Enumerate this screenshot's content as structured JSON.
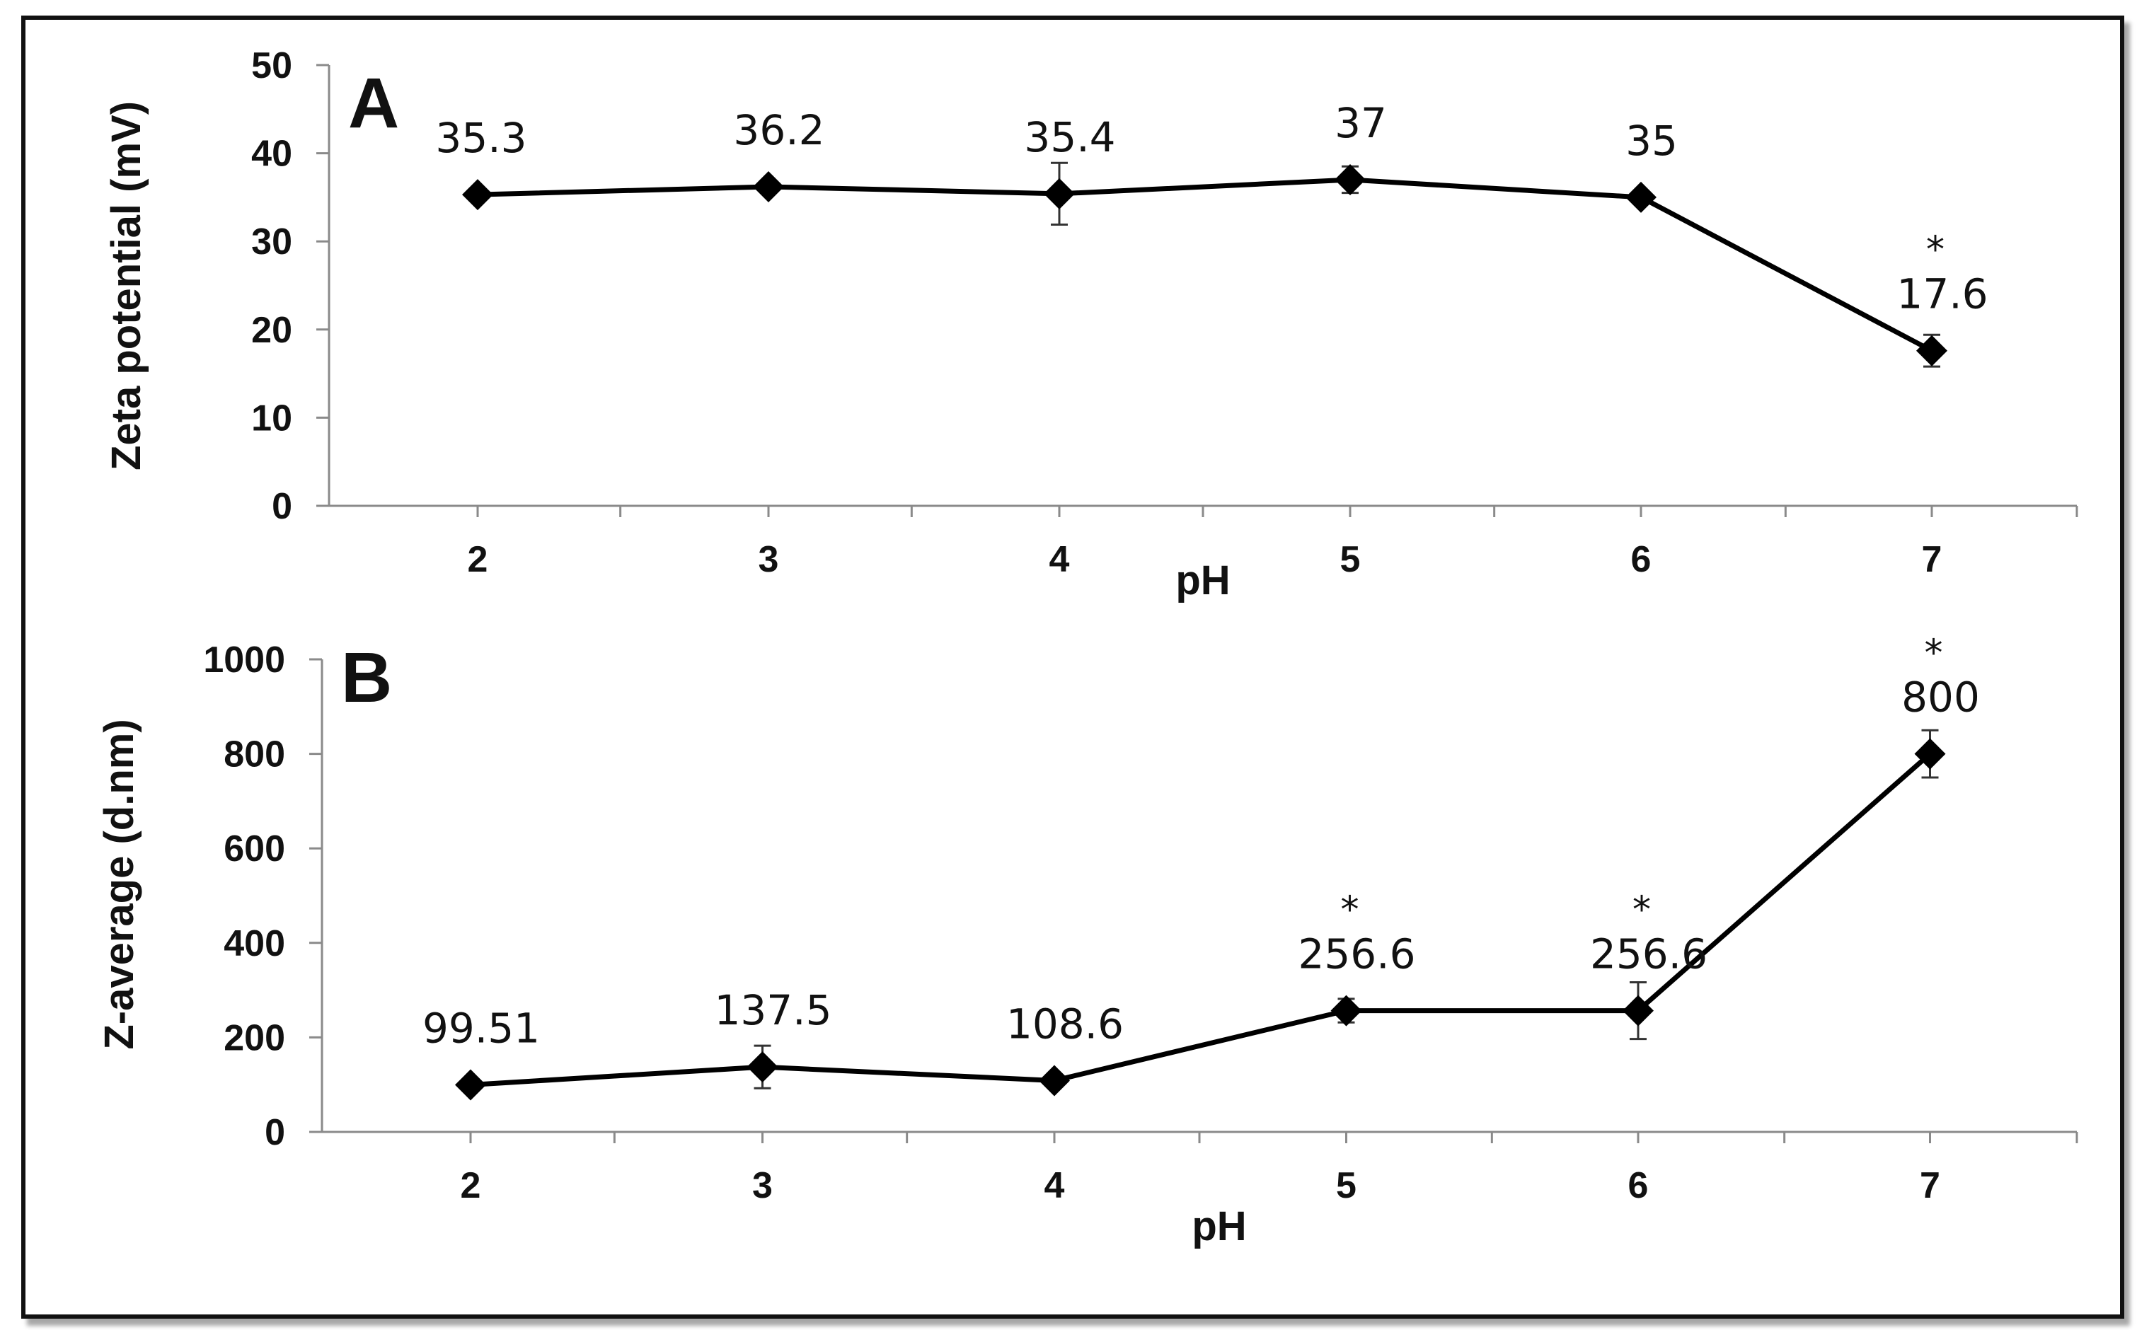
{
  "chart_data": [
    {
      "type": "line",
      "panel_label": "A",
      "xlabel": "pH",
      "ylabel": "Zeta potential  (mV)",
      "categories": [
        "2",
        "3",
        "4",
        "5",
        "6",
        "7"
      ],
      "ylim": [
        0,
        50
      ],
      "yticks": [
        "0",
        "10",
        "20",
        "30",
        "40",
        "50"
      ],
      "values": [
        35.3,
        36.2,
        35.4,
        37,
        35,
        17.6
      ],
      "errors": [
        0.6,
        0.6,
        3.5,
        1.5,
        0.5,
        1.8
      ],
      "data_labels": [
        "35.3",
        "36.2",
        "35.4",
        "37",
        "35",
        "17.6"
      ],
      "significance": [
        "",
        "",
        "",
        "",
        "",
        "*"
      ],
      "grid": false,
      "line_color": "#000000",
      "marker": "diamond"
    },
    {
      "type": "line",
      "panel_label": "B",
      "xlabel": "pH",
      "ylabel": "Z-average (d.nm)",
      "categories": [
        "2",
        "3",
        "4",
        "5",
        "6",
        "7"
      ],
      "ylim": [
        0,
        1000
      ],
      "yticks": [
        "0",
        "200",
        "400",
        "600",
        "800",
        "1000"
      ],
      "values": [
        99.51,
        137.5,
        108.6,
        256.6,
        256.6,
        800
      ],
      "errors": [
        8,
        45,
        10,
        25,
        60,
        50
      ],
      "data_labels": [
        "99.51",
        "137.5",
        "108.6",
        "256.6",
        "256.6",
        "800"
      ],
      "significance": [
        "",
        "",
        "",
        "*",
        "*",
        "*"
      ],
      "grid": false,
      "line_color": "#000000",
      "marker": "diamond"
    }
  ]
}
